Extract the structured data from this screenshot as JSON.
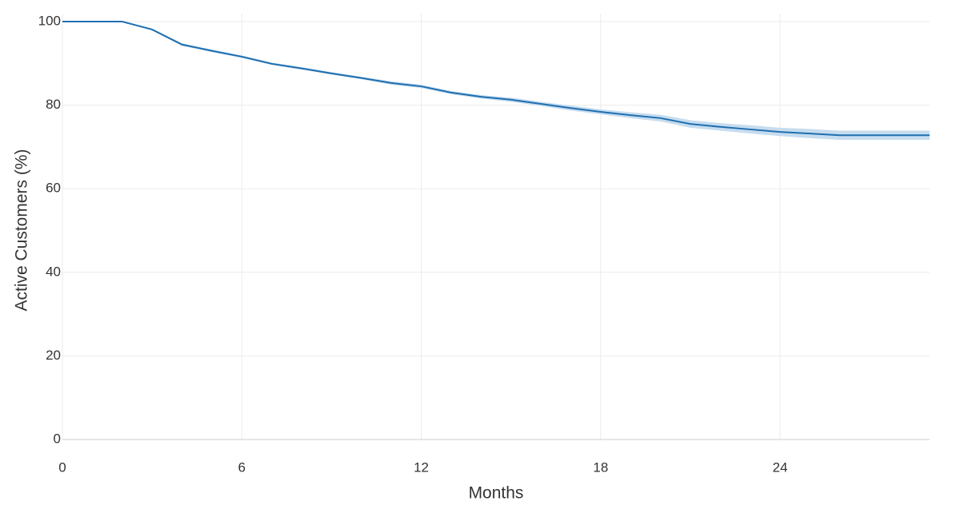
{
  "chart_data": {
    "type": "line",
    "x_label": "Months",
    "y_label": "Active Customers (%)",
    "x": [
      0,
      1,
      2,
      3,
      4,
      5,
      6,
      7,
      8,
      9,
      10,
      11,
      12,
      13,
      14,
      15,
      16,
      17,
      18,
      19,
      20,
      21,
      22,
      23,
      24,
      25,
      26,
      27,
      28,
      29
    ],
    "series": [
      {
        "color": "#1f6fb0",
        "values": [
          100,
          100,
          100,
          98.1,
          94.5,
          93,
          91.6,
          89.9,
          88.8,
          87.6,
          86.5,
          85.3,
          84.5,
          83,
          82,
          81.3,
          80.3,
          79.3,
          78.4,
          77.6,
          76.9,
          75.5,
          74.8,
          74.2,
          73.6,
          73.2,
          72.8,
          72.8,
          72.8,
          72.8
        ]
      }
    ],
    "band": {
      "color": "#c6dcef",
      "upper": [
        100,
        100,
        100,
        98.3,
        94.8,
        93.3,
        91.9,
        90.2,
        89.1,
        87.9,
        86.8,
        85.7,
        84.9,
        83.4,
        82.4,
        81.8,
        80.8,
        79.9,
        79,
        78.3,
        77.7,
        76.4,
        75.7,
        75.2,
        74.6,
        74.3,
        73.9,
        73.9,
        73.9,
        73.9
      ],
      "lower": [
        100,
        100,
        100,
        97.9,
        94.2,
        92.7,
        91.3,
        89.6,
        88.5,
        87.3,
        86.2,
        84.9,
        84.1,
        82.6,
        81.6,
        80.8,
        79.8,
        78.7,
        77.8,
        76.9,
        76.1,
        74.6,
        73.9,
        73.2,
        72.6,
        72.1,
        71.7,
        71.7,
        71.7,
        71.7
      ]
    },
    "xlim": [
      0,
      29
    ],
    "xticks": [
      0,
      6,
      12,
      18,
      24
    ],
    "ylim": [
      0,
      100
    ],
    "yticks": [
      0,
      20,
      40,
      60,
      80,
      100
    ],
    "grid": true
  }
}
